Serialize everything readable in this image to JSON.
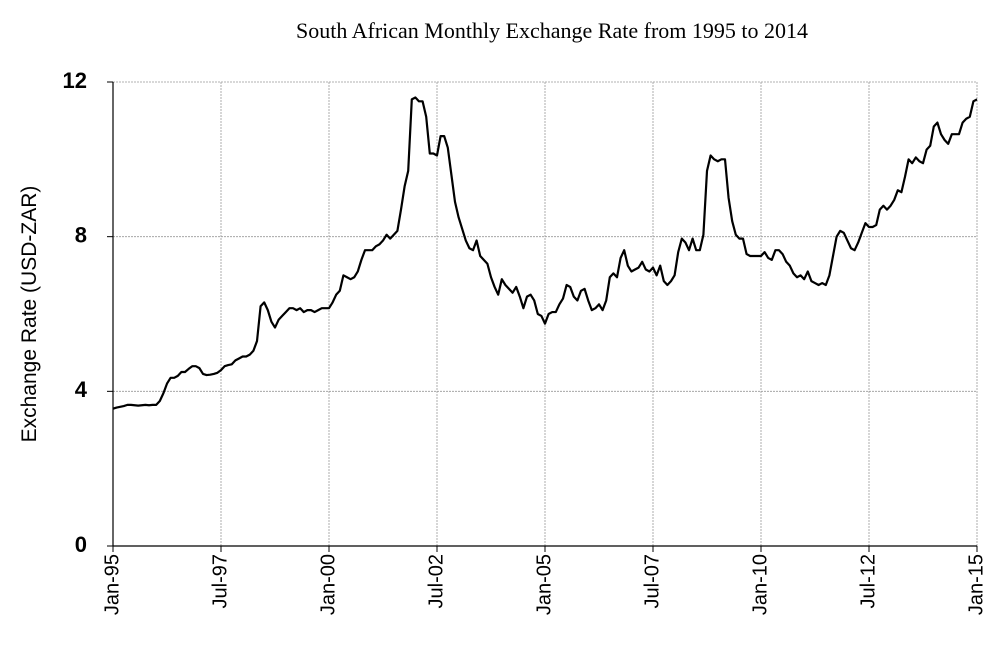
{
  "chart_data": {
    "type": "line",
    "title": "South African  Monthly Exchange Rate from 1995 to 2014",
    "y_label": "Exchange Rate (USD-ZAR)",
    "categories": [
      "Jan-95",
      null,
      null,
      null,
      null,
      null,
      null,
      null,
      null,
      null,
      null,
      null,
      null,
      null,
      null,
      null,
      null,
      null,
      null,
      null,
      null,
      null,
      null,
      null,
      null,
      null,
      null,
      null,
      null,
      null,
      "Jul-97",
      null,
      null,
      null,
      null,
      null,
      null,
      null,
      null,
      null,
      null,
      null,
      null,
      null,
      null,
      null,
      null,
      null,
      null,
      null,
      null,
      null,
      null,
      null,
      null,
      null,
      null,
      null,
      null,
      null,
      "Jan-00",
      null,
      null,
      null,
      null,
      null,
      null,
      null,
      null,
      null,
      null,
      null,
      null,
      null,
      null,
      null,
      null,
      null,
      null,
      null,
      null,
      null,
      null,
      null,
      null,
      null,
      null,
      null,
      null,
      null,
      "Jul-02",
      null,
      null,
      null,
      null,
      null,
      null,
      null,
      null,
      null,
      null,
      null,
      null,
      null,
      null,
      null,
      null,
      null,
      null,
      null,
      null,
      null,
      null,
      null,
      null,
      null,
      null,
      null,
      null,
      null,
      "Jan-05",
      null,
      null,
      null,
      null,
      null,
      null,
      null,
      null,
      null,
      null,
      null,
      null,
      null,
      null,
      null,
      null,
      null,
      null,
      null,
      null,
      null,
      null,
      null,
      null,
      null,
      null,
      null,
      null,
      null,
      "Jul-07",
      null,
      null,
      null,
      null,
      null,
      null,
      null,
      null,
      null,
      null,
      null,
      null,
      null,
      null,
      null,
      null,
      null,
      null,
      null,
      null,
      null,
      null,
      null,
      null,
      null,
      null,
      null,
      null,
      null,
      "Jan-10",
      null,
      null,
      null,
      null,
      null,
      null,
      null,
      null,
      null,
      null,
      null,
      null,
      null,
      null,
      null,
      null,
      null,
      null,
      null,
      null,
      null,
      null,
      null,
      null,
      null,
      null,
      null,
      null,
      null,
      "Jul-12",
      null,
      null,
      null,
      null,
      null,
      null,
      null,
      null,
      null,
      null,
      null,
      null,
      null,
      null,
      null,
      null,
      null,
      null,
      null,
      null,
      null,
      null,
      null,
      null,
      null,
      null,
      null,
      null,
      null,
      "Jan-15"
    ],
    "values": [
      3.55,
      3.58,
      3.6,
      3.62,
      3.65,
      3.65,
      3.64,
      3.63,
      3.64,
      3.65,
      3.64,
      3.65,
      3.65,
      3.75,
      3.95,
      4.2,
      4.35,
      4.35,
      4.4,
      4.5,
      4.5,
      4.58,
      4.65,
      4.65,
      4.6,
      4.45,
      4.42,
      4.43,
      4.45,
      4.48,
      4.55,
      4.65,
      4.68,
      4.7,
      4.8,
      4.85,
      4.9,
      4.9,
      4.95,
      5.05,
      5.3,
      6.2,
      6.3,
      6.1,
      5.8,
      5.65,
      5.85,
      5.95,
      6.05,
      6.15,
      6.15,
      6.1,
      6.15,
      6.05,
      6.1,
      6.1,
      6.05,
      6.1,
      6.15,
      6.15,
      6.15,
      6.3,
      6.5,
      6.6,
      7.0,
      6.95,
      6.9,
      6.95,
      7.1,
      7.4,
      7.65,
      7.65,
      7.65,
      7.75,
      7.8,
      7.9,
      8.05,
      7.95,
      8.05,
      8.15,
      8.7,
      9.3,
      9.7,
      11.55,
      11.6,
      11.5,
      11.5,
      11.1,
      10.15,
      10.15,
      10.1,
      10.6,
      10.6,
      10.3,
      9.6,
      8.9,
      8.5,
      8.2,
      7.9,
      7.7,
      7.65,
      7.9,
      7.5,
      7.4,
      7.3,
      6.95,
      6.7,
      6.5,
      6.9,
      6.75,
      6.65,
      6.55,
      6.7,
      6.45,
      6.15,
      6.45,
      6.5,
      6.35,
      6.0,
      5.95,
      5.75,
      6.0,
      6.05,
      6.05,
      6.25,
      6.4,
      6.75,
      6.7,
      6.45,
      6.35,
      6.6,
      6.65,
      6.35,
      6.1,
      6.15,
      6.25,
      6.1,
      6.35,
      6.95,
      7.05,
      6.95,
      7.45,
      7.65,
      7.25,
      7.1,
      7.15,
      7.2,
      7.35,
      7.15,
      7.1,
      7.2,
      7.0,
      7.25,
      6.85,
      6.75,
      6.85,
      7.0,
      7.6,
      7.95,
      7.85,
      7.65,
      7.95,
      7.65,
      7.65,
      8.05,
      9.7,
      10.1,
      10.0,
      9.95,
      10.0,
      10.0,
      9.0,
      8.4,
      8.05,
      7.95,
      7.95,
      7.55,
      7.5,
      7.5,
      7.5,
      7.5,
      7.6,
      7.45,
      7.4,
      7.65,
      7.65,
      7.55,
      7.35,
      7.25,
      7.05,
      6.95,
      7.0,
      6.9,
      7.1,
      6.85,
      6.8,
      6.75,
      6.8,
      6.75,
      7.0,
      7.5,
      8.0,
      8.15,
      8.1,
      7.9,
      7.7,
      7.65,
      7.85,
      8.1,
      8.35,
      8.25,
      8.25,
      8.3,
      8.7,
      8.8,
      8.7,
      8.8,
      8.95,
      9.2,
      9.15,
      9.55,
      10.0,
      9.9,
      10.05,
      9.95,
      9.9,
      10.25,
      10.35,
      10.85,
      10.95,
      10.65,
      10.5,
      10.4,
      10.65,
      10.65,
      10.65,
      10.95,
      11.05,
      11.1,
      11.5,
      11.55
    ],
    "color": "#000000",
    "ylim": [
      0,
      12
    ],
    "yticks": [
      0,
      4,
      8,
      12
    ],
    "grid": true
  }
}
